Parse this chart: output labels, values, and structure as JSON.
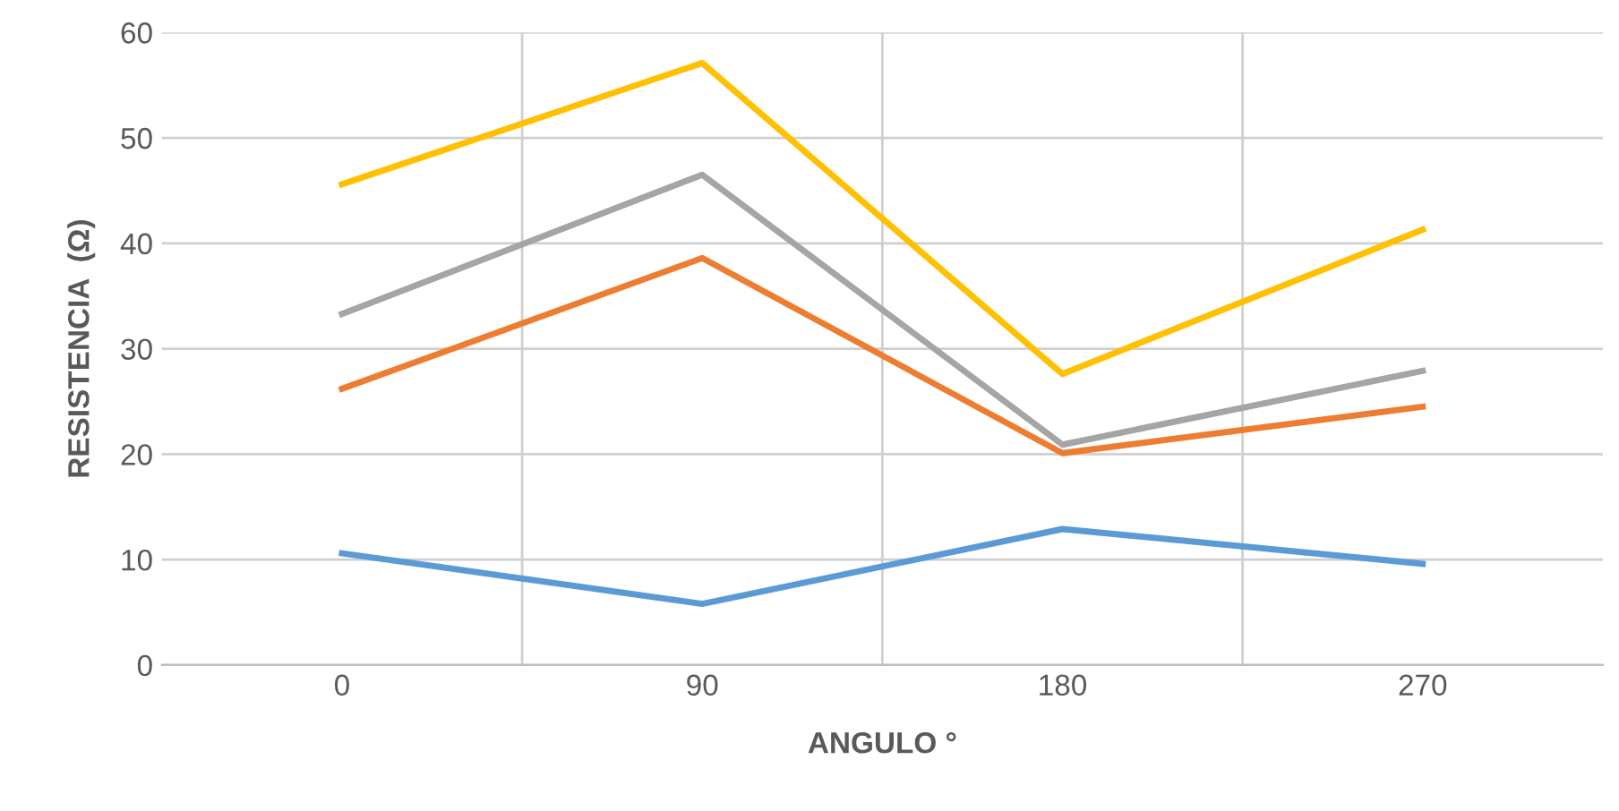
{
  "chart_data": {
    "type": "line",
    "xlabel": "ANGULO °",
    "ylabel": "RESISTENCIA  (Ω)",
    "categories": [
      "0",
      "90",
      "180",
      "270"
    ],
    "series": [
      {
        "color": "#5b9bd5",
        "values": [
          10.6,
          5.8,
          12.9,
          9.6
        ]
      },
      {
        "color": "#ed7d31",
        "values": [
          26.2,
          38.6,
          20.1,
          24.5
        ]
      },
      {
        "color": "#a5a5a5",
        "values": [
          33.3,
          46.5,
          20.9,
          27.9
        ]
      },
      {
        "color": "#ffc000",
        "values": [
          45.6,
          57.1,
          27.6,
          41.3
        ]
      }
    ],
    "ylim": [
      0,
      60
    ],
    "yticks": [
      0,
      10,
      20,
      30,
      40,
      50,
      60
    ],
    "grid": true,
    "legend": false,
    "marker": "none",
    "line_style": "solid"
  }
}
